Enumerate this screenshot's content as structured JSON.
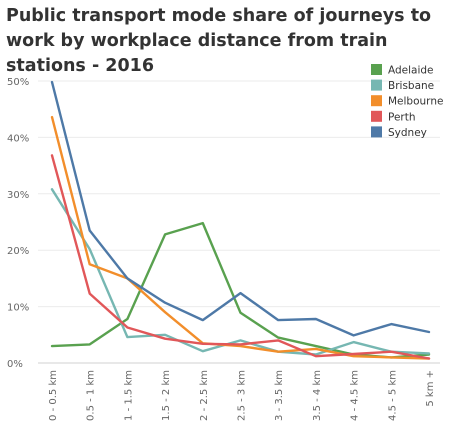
{
  "chart_data": {
    "type": "line",
    "title": "Public transport mode share of journeys to work by workplace distance from train stations - 2016",
    "xlabel": "",
    "ylabel": "",
    "categories": [
      "0 - 0.5 km",
      "0.5 - 1 km",
      "1 - 1.5 km",
      "1.5 - 2 km",
      "2 - 2.5 km",
      "2.5 - 3 km",
      "3 - 3.5 km",
      "3.5 - 4 km",
      "4 - 4.5 km",
      "4.5 - 5 km",
      "5 km +"
    ],
    "ylim": [
      0,
      50
    ],
    "yticks": [
      0,
      10,
      20,
      30,
      40,
      50
    ],
    "ytick_labels": [
      "0%",
      "10%",
      "20%",
      "30%",
      "40%",
      "50%"
    ],
    "grid": "horizontal",
    "legend_position": "top-right",
    "series": [
      {
        "name": "Adelaide",
        "color": "#59a14f",
        "values": [
          3.0,
          3.3,
          7.8,
          22.8,
          24.8,
          8.9,
          4.5,
          3.0,
          1.5,
          1.0,
          1.5
        ]
      },
      {
        "name": "Brisbane",
        "color": "#76b7b2",
        "values": [
          30.8,
          20.2,
          4.6,
          5.0,
          2.1,
          4.0,
          2.0,
          1.5,
          3.7,
          2.0,
          1.7
        ]
      },
      {
        "name": "Melbourne",
        "color": "#f28e2b",
        "values": [
          43.6,
          17.5,
          15.0,
          9.0,
          3.5,
          3.0,
          2.0,
          2.5,
          1.2,
          1.0,
          0.8
        ]
      },
      {
        "name": "Perth",
        "color": "#e15759",
        "values": [
          36.8,
          12.3,
          6.3,
          4.3,
          3.4,
          3.3,
          4.0,
          1.2,
          1.6,
          2.0,
          0.8
        ]
      },
      {
        "name": "Sydney",
        "color": "#4e79a7",
        "values": [
          49.8,
          23.5,
          15.0,
          10.7,
          7.6,
          12.4,
          7.6,
          7.8,
          4.9,
          6.9,
          5.5
        ]
      }
    ]
  }
}
